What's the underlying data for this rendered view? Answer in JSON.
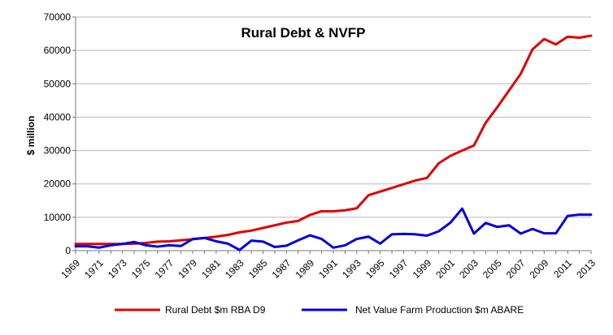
{
  "chart_data": {
    "type": "line",
    "title": "Rural Debt & NVFP",
    "xlabel": "",
    "ylabel": "$ million",
    "ylim": [
      0,
      70000
    ],
    "yticks": [
      "0",
      "10000",
      "20000",
      "30000",
      "40000",
      "50000",
      "60000",
      "70000"
    ],
    "x": [
      1969,
      1970,
      1971,
      1972,
      1973,
      1974,
      1975,
      1976,
      1977,
      1978,
      1979,
      1980,
      1981,
      1982,
      1983,
      1984,
      1985,
      1986,
      1987,
      1988,
      1989,
      1990,
      1991,
      1992,
      1993,
      1994,
      1995,
      1996,
      1997,
      1998,
      1999,
      2000,
      2001,
      2002,
      2003,
      2004,
      2005,
      2006,
      2007,
      2008,
      2009,
      2010,
      2011,
      2012,
      2013
    ],
    "xtick_labels": [
      "1969",
      "1971",
      "1973",
      "1975",
      "1977",
      "1979",
      "1981",
      "1983",
      "1985",
      "1987",
      "1989",
      "1991",
      "1993",
      "1995",
      "1997",
      "1999",
      "2001",
      "2003",
      "2005",
      "2007",
      "2009",
      "2011",
      "2013"
    ],
    "grid": "horizontal",
    "legend_position": "bottom",
    "series": [
      {
        "name": "Rural  Debt $m RBA D9",
        "color": "#e00000",
        "values": [
          2000,
          2000,
          2000,
          2000,
          2000,
          2100,
          2300,
          2700,
          2800,
          3100,
          3400,
          3800,
          4200,
          4700,
          5500,
          6000,
          6800,
          7600,
          8400,
          8900,
          10700,
          11800,
          11800,
          12100,
          12700,
          16600,
          17700,
          18800,
          19900,
          21000,
          21800,
          26200,
          28400,
          30000,
          31500,
          38300,
          43000,
          48000,
          53000,
          60300,
          63400,
          61800,
          64100,
          63800,
          64400
        ]
      },
      {
        "name": "Net Value Farm Production $m ABARE",
        "color": "#0000e0",
        "values": [
          1300,
          1300,
          900,
          1600,
          2000,
          2600,
          1600,
          1200,
          1600,
          1400,
          3500,
          3800,
          2800,
          2100,
          200,
          3000,
          2700,
          1100,
          1500,
          3100,
          4600,
          3500,
          900,
          1600,
          3500,
          4200,
          2100,
          4900,
          5000,
          4900,
          4500,
          5800,
          8400,
          12600,
          5100,
          8300,
          7100,
          7600,
          5100,
          6500,
          5200,
          5200,
          10400,
          10800,
          10800
        ]
      }
    ]
  }
}
